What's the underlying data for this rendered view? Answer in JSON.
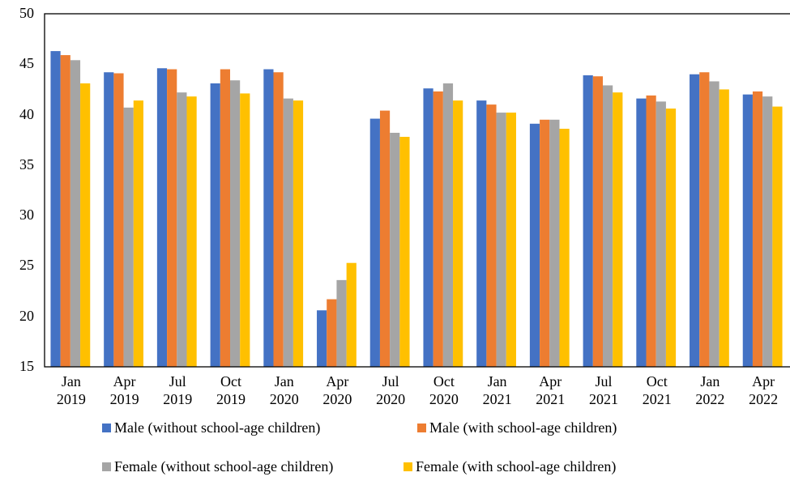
{
  "chart_data": {
    "type": "bar",
    "categories": [
      "Jan 2019",
      "Apr 2019",
      "Jul 2019",
      "Oct 2019",
      "Jan 2020",
      "Apr 2020",
      "Jul 2020",
      "Oct 2020",
      "Jan 2021",
      "Apr 2021",
      "Jul 2021",
      "Oct 2021",
      "Jan 2022",
      "Apr 2022"
    ],
    "series": [
      {
        "name": "Male (without school-age children)",
        "color": "#4472c4",
        "values": [
          46.3,
          44.2,
          44.6,
          43.1,
          44.5,
          20.6,
          39.6,
          42.6,
          41.4,
          39.1,
          43.9,
          41.6,
          44.0,
          42.0
        ]
      },
      {
        "name": "Male (with school-age children)",
        "color": "#ed7d31",
        "values": [
          45.9,
          44.1,
          44.5,
          44.5,
          44.2,
          21.7,
          40.4,
          42.3,
          41.0,
          39.5,
          43.8,
          41.9,
          44.2,
          42.3
        ]
      },
      {
        "name": "Female (without school-age children)",
        "color": "#a5a5a5",
        "values": [
          45.4,
          40.7,
          42.2,
          43.4,
          41.6,
          23.6,
          38.2,
          43.1,
          40.2,
          39.5,
          42.9,
          41.3,
          43.3,
          41.8
        ]
      },
      {
        "name": "Female (with school-age children)",
        "color": "#ffc000",
        "values": [
          43.1,
          41.4,
          41.8,
          42.1,
          41.4,
          25.3,
          37.8,
          41.4,
          40.2,
          38.6,
          42.2,
          40.6,
          42.5,
          40.8
        ]
      }
    ],
    "ylim": [
      15,
      50
    ],
    "yticks": [
      15,
      20,
      25,
      30,
      35,
      40,
      45,
      50
    ],
    "grid": false
  }
}
